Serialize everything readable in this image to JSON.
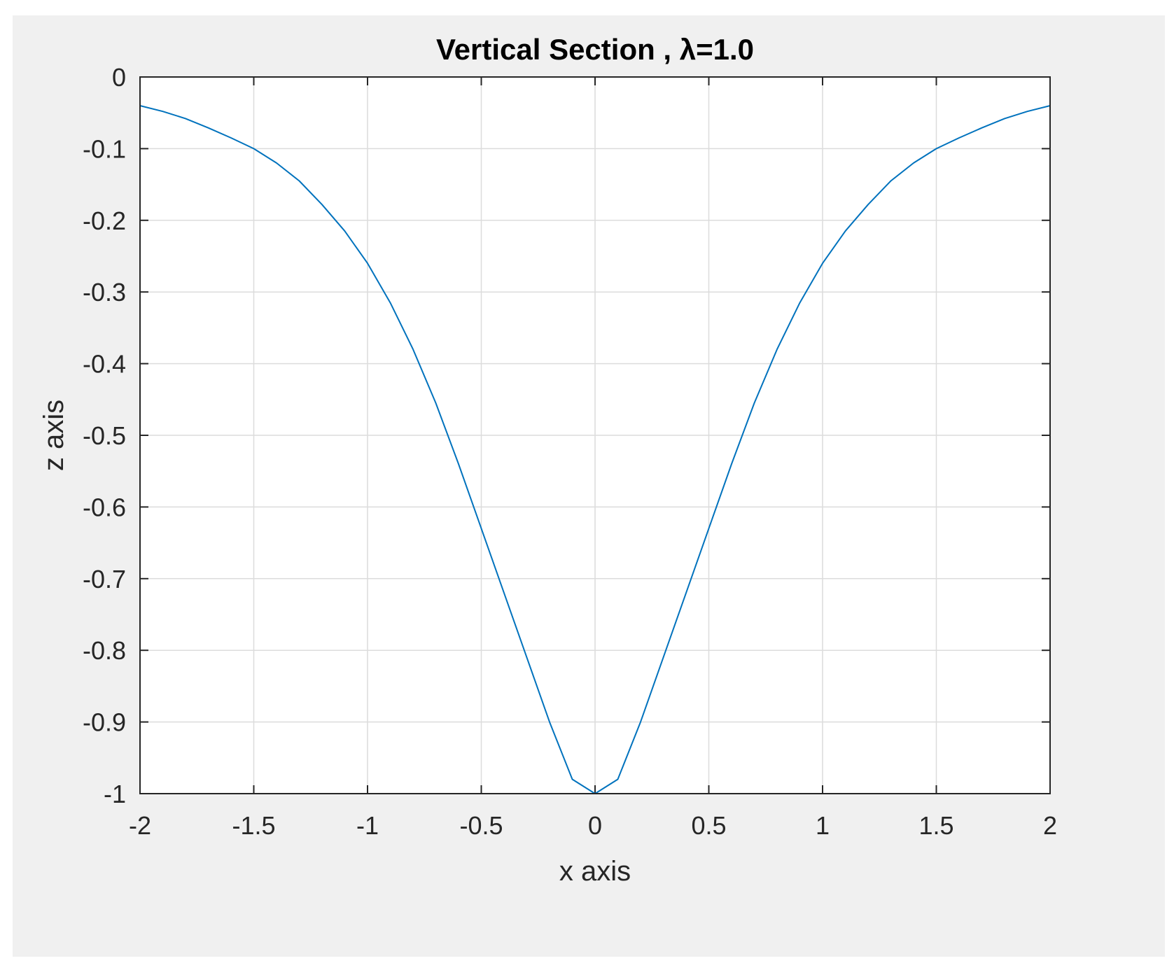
{
  "chart_data": {
    "type": "line",
    "title": "Vertical Section , λ=1.0",
    "xlabel": "x axis",
    "ylabel": "z axis",
    "xlim": [
      -2,
      2
    ],
    "ylim": [
      -1,
      0
    ],
    "grid": true,
    "x_ticks": [
      "-2",
      "-1.5",
      "-1",
      "-0.5",
      "0",
      "0.5",
      "1",
      "1.5",
      "2"
    ],
    "y_ticks": [
      "0",
      "-0.1",
      "-0.2",
      "-0.3",
      "-0.4",
      "-0.5",
      "-0.6",
      "-0.7",
      "-0.8",
      "-0.9",
      "-1"
    ],
    "series": [
      {
        "color": "#0072bd",
        "x": [
          -2,
          -1.9,
          -1.8,
          -1.7,
          -1.6,
          -1.5,
          -1.4,
          -1.3,
          -1.2,
          -1.1,
          -1.0,
          -0.9,
          -0.8,
          -0.7,
          -0.6,
          -0.5,
          -0.4,
          -0.3,
          -0.2,
          -0.1,
          0,
          0.1,
          0.2,
          0.3,
          0.4,
          0.5,
          0.6,
          0.7,
          0.8,
          0.9,
          1.0,
          1.1,
          1.2,
          1.3,
          1.4,
          1.5,
          1.6,
          1.7,
          1.8,
          1.9,
          2
        ],
        "y": [
          -0.04,
          -0.048,
          -0.058,
          -0.071,
          -0.085,
          -0.1,
          -0.12,
          -0.145,
          -0.178,
          -0.215,
          -0.26,
          -0.315,
          -0.38,
          -0.455,
          -0.54,
          -0.63,
          -0.72,
          -0.81,
          -0.9,
          -0.98,
          -1.0,
          -0.98,
          -0.9,
          -0.81,
          -0.72,
          -0.63,
          -0.54,
          -0.455,
          -0.38,
          -0.315,
          -0.26,
          -0.215,
          -0.178,
          -0.145,
          -0.12,
          -0.1,
          -0.085,
          -0.071,
          -0.058,
          -0.048,
          -0.04
        ]
      }
    ]
  }
}
